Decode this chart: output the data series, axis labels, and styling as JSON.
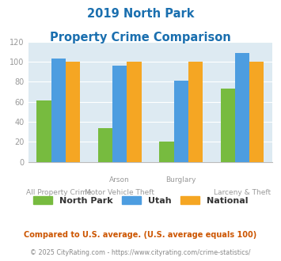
{
  "title_line1": "2019 North Park",
  "title_line2": "Property Crime Comparison",
  "groups": [
    {
      "north_park": 61,
      "utah": 103,
      "national": 100
    },
    {
      "north_park": 34,
      "utah": 96,
      "national": 100
    },
    {
      "north_park": 20,
      "utah": 81,
      "national": 100
    },
    {
      "north_park": 73,
      "utah": 109,
      "national": 100
    }
  ],
  "color_northpark": "#77bb3f",
  "color_utah": "#4d9de0",
  "color_national": "#f5a623",
  "ylim": [
    0,
    120
  ],
  "yticks": [
    0,
    20,
    40,
    60,
    80,
    100,
    120
  ],
  "legend_labels": [
    "North Park",
    "Utah",
    "National"
  ],
  "footnote1": "Compared to U.S. average. (U.S. average equals 100)",
  "footnote2": "© 2025 CityRating.com - https://www.cityrating.com/crime-statistics/",
  "title_color": "#1a6faf",
  "footnote1_color": "#cc5500",
  "footnote2_color": "#888888",
  "bg_color": "#ddeaf2",
  "label_color": "#999999",
  "top_xlabels": [
    "",
    "Arson",
    "",
    "Burglary",
    ""
  ],
  "bottom_xlabels": [
    "All Property Crime",
    "Motor Vehicle Theft",
    "",
    "Larceny & Theft"
  ]
}
